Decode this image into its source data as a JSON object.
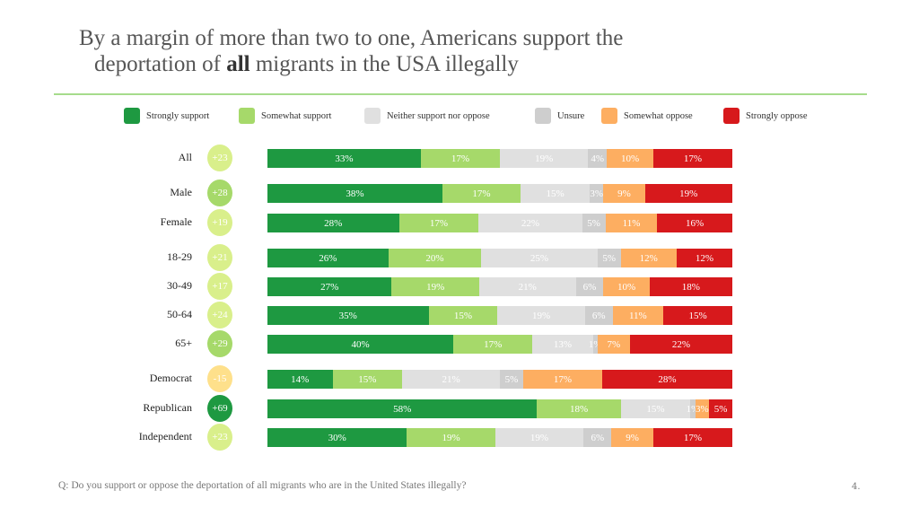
{
  "title_line1": "By a margin of more than two to one, Americans support the",
  "title_line2_pre": "deportation of ",
  "title_line2_bold": "all",
  "title_line2_post": " migrants in the USA illegally",
  "footer": "Q: Do you support or oppose the deportation of all migrants who are in the United States illegally?",
  "page_number": "4.",
  "chart_data": {
    "type": "bar",
    "orientation": "horizontal-stacked-100",
    "legend_position": "top",
    "series": [
      {
        "name": "Strongly support",
        "color": "#1e9941",
        "values": [
          33,
          38,
          28,
          26,
          27,
          35,
          40,
          14,
          58,
          30
        ]
      },
      {
        "name": "Somewhat support",
        "color": "#a6d96a",
        "values": [
          17,
          17,
          17,
          20,
          19,
          15,
          17,
          15,
          18,
          19
        ]
      },
      {
        "name": "Neither support nor oppose",
        "color": "#e0e0e0",
        "values": [
          19,
          15,
          22,
          25,
          21,
          19,
          13,
          21,
          15,
          19
        ]
      },
      {
        "name": "Unsure",
        "color": "#cecece",
        "values": [
          4,
          3,
          5,
          5,
          6,
          6,
          1,
          5,
          1,
          6
        ]
      },
      {
        "name": "Somewhat oppose",
        "color": "#fdae61",
        "values": [
          10,
          9,
          11,
          12,
          10,
          11,
          7,
          17,
          3,
          9
        ]
      },
      {
        "name": "Strongly oppose",
        "color": "#d7191c",
        "values": [
          17,
          19,
          16,
          12,
          18,
          15,
          22,
          28,
          5,
          17
        ]
      }
    ],
    "categories": [
      "All",
      "Male",
      "Female",
      "18-29",
      "30-49",
      "50-64",
      "65+",
      "Democrat",
      "Republican",
      "Independent"
    ],
    "net": [
      "+23",
      "+28",
      "+19",
      "+21",
      "+17",
      "+24",
      "+29",
      "-15",
      "+69",
      "+23"
    ],
    "net_colors": [
      "#d9ef8b",
      "#a6d96a",
      "#d9ef8b",
      "#d9ef8b",
      "#d9ef8b",
      "#d9ef8b",
      "#a6d96a",
      "#fee08b",
      "#1e9941",
      "#d9ef8b"
    ]
  }
}
